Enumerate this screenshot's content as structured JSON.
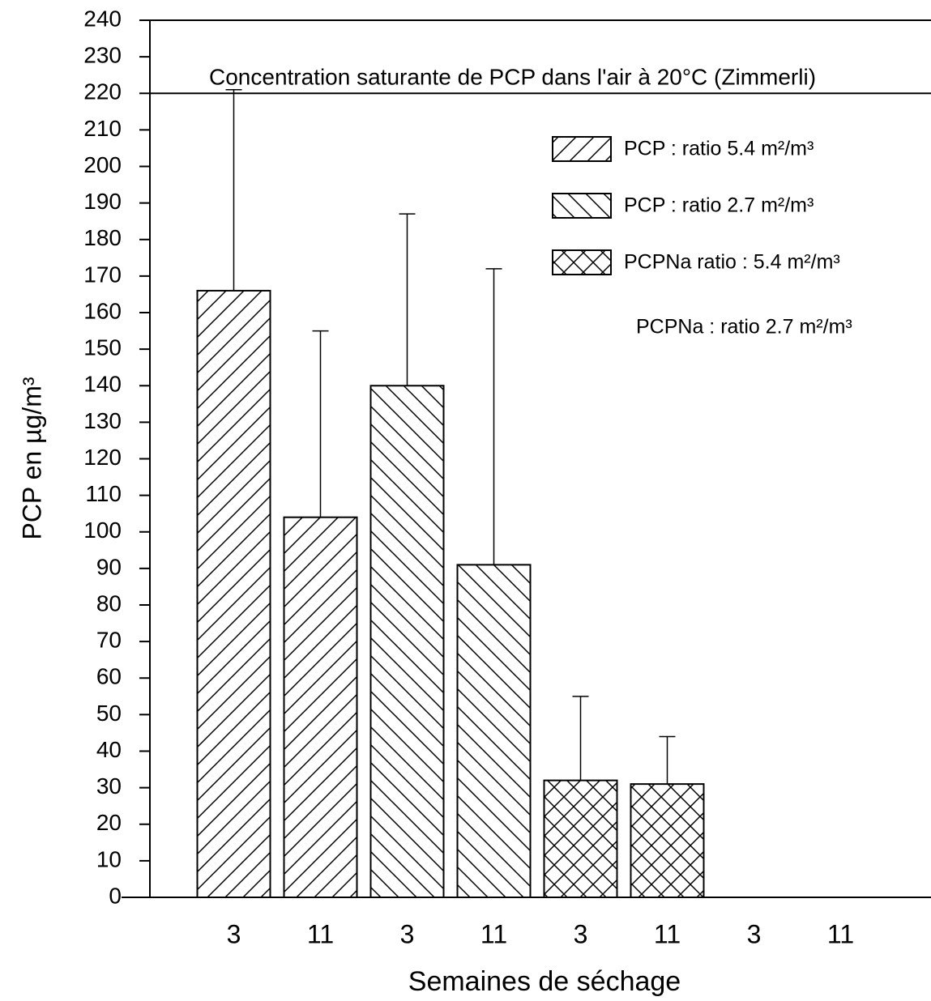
{
  "chart_data": {
    "type": "bar",
    "y_label": "PCP en µg/m³",
    "x_label": "Semaines de séchage",
    "categories": [
      "3",
      "11",
      "3",
      "11",
      "3",
      "11",
      "3",
      "11"
    ],
    "series": [
      {
        "name": "PCP : ratio 5.4 m²/m³",
        "color": "#000000",
        "hatch": "forward",
        "values": [
          166,
          104,
          null,
          null,
          null,
          null,
          null,
          null
        ],
        "errors": [
          55,
          51,
          null,
          null,
          null,
          null,
          null,
          null
        ]
      },
      {
        "name": "PCP : ratio 2.7 m²/m³",
        "color": "#000000",
        "hatch": "back",
        "values": [
          null,
          null,
          140,
          91,
          null,
          null,
          null,
          null
        ],
        "errors": [
          null,
          null,
          47,
          81,
          null,
          null,
          null,
          null
        ]
      },
      {
        "name": "PCPNa ratio : 5.4 m²/m³",
        "color": "#000000",
        "hatch": "cross",
        "values": [
          null,
          null,
          null,
          null,
          32,
          31,
          null,
          null
        ],
        "errors": [
          null,
          null,
          null,
          null,
          23,
          13,
          null,
          null
        ]
      },
      {
        "name": "PCPNa : ratio 2.7 m²/m³",
        "color": "#000000",
        "hatch": "none",
        "values": [
          null,
          null,
          null,
          null,
          null,
          null,
          null,
          null
        ],
        "errors": [
          null,
          null,
          null,
          null,
          null,
          null,
          null,
          null
        ]
      }
    ],
    "reference_line": {
      "value": 220,
      "label": "Concentration saturante de PCP dans l'air à 20°C (Zimmerli)"
    },
    "ylim": [
      0,
      240
    ],
    "yticks": [
      0,
      10,
      20,
      30,
      40,
      50,
      60,
      70,
      80,
      90,
      100,
      110,
      120,
      130,
      140,
      150,
      160,
      170,
      180,
      190,
      200,
      210,
      220,
      230,
      240
    ],
    "grid": false,
    "legend": "top-right"
  }
}
